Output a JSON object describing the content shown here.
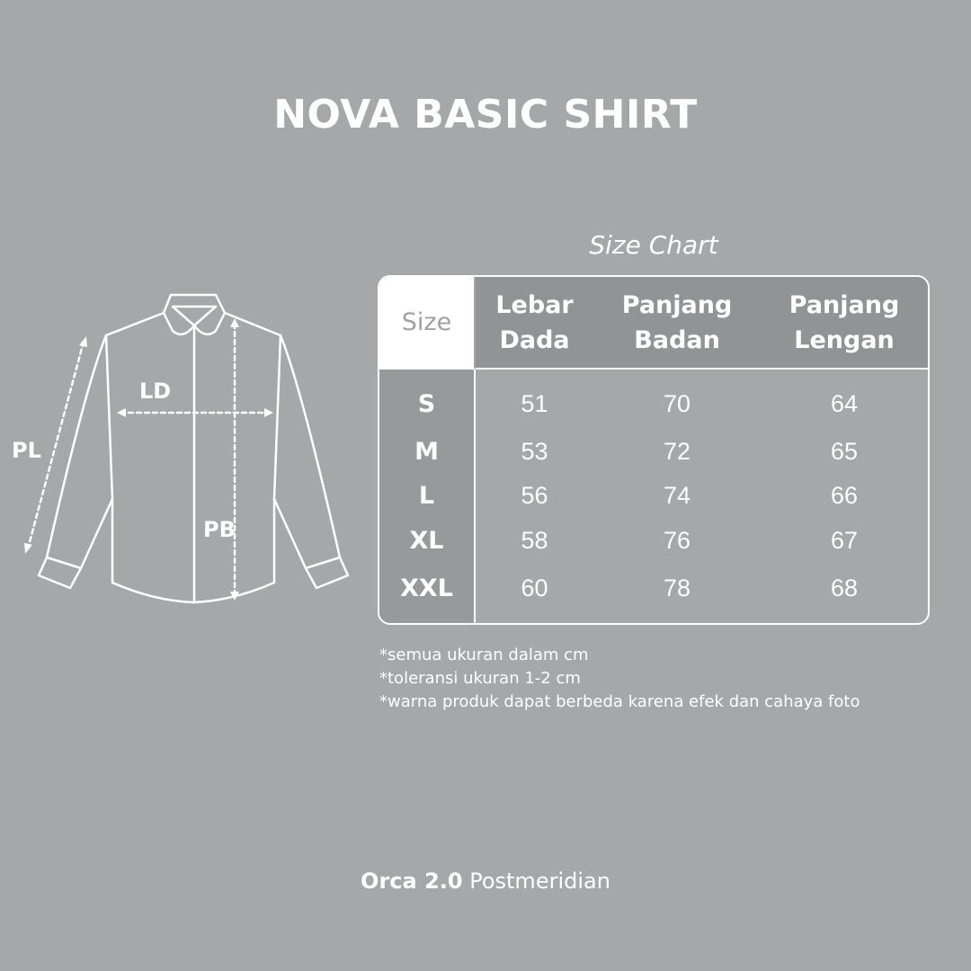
{
  "title": "NOVA BASIC SHIRT",
  "subtitle": "Size Chart",
  "diagram": {
    "labels": {
      "pl": "PL",
      "ld": "LD",
      "pb": "PB"
    }
  },
  "table": {
    "headers": [
      "Size",
      "Lebar Dada",
      "Panjang Badan",
      "Panjang Lengan"
    ],
    "header_lines": [
      [
        "Size"
      ],
      [
        "Lebar",
        "Dada"
      ],
      [
        "Panjang",
        "Badan"
      ],
      [
        "Panjang",
        "Lengan"
      ]
    ],
    "rows": [
      [
        "S",
        "51",
        "70",
        "64"
      ],
      [
        "M",
        "53",
        "72",
        "65"
      ],
      [
        "L",
        "56",
        "74",
        "66"
      ],
      [
        "XL",
        "58",
        "76",
        "67"
      ],
      [
        "XXL",
        "60",
        "78",
        "68"
      ]
    ]
  },
  "notes": [
    "*semua ukuran dalam cm",
    "*toleransi ukuran 1-2 cm",
    "*warna produk dapat berbeda karena efek dan cahaya foto"
  ],
  "footer": {
    "brand": "Orca 2.0",
    "line": "Postmeridian"
  },
  "colors": {
    "background": "#a6a7a9",
    "header": "#929395",
    "size_column": "#98999b",
    "text": "#ffffff"
  }
}
